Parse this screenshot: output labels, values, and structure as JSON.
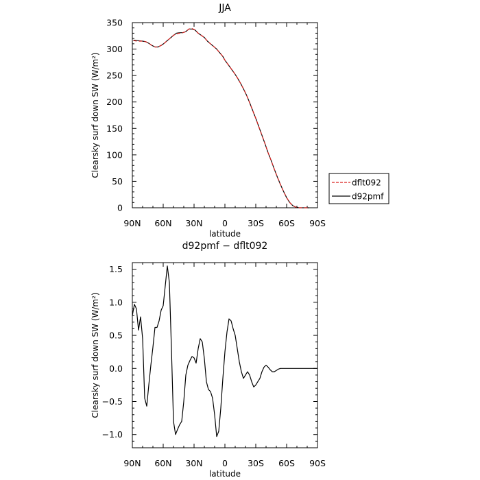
{
  "chart_data": [
    {
      "type": "line",
      "title": "JJA",
      "xlabel": "latitude",
      "ylabel": "Clearsky surf down SW (W/m²)",
      "xlim": [
        90,
        -90
      ],
      "ylim": [
        0,
        350
      ],
      "xticks": [
        90,
        60,
        30,
        0,
        -30,
        -60,
        -90
      ],
      "xtick_labels": [
        "90N",
        "60N",
        "30N",
        "0",
        "30S",
        "60S",
        "90S"
      ],
      "yticks": [
        0,
        50,
        100,
        150,
        200,
        250,
        300,
        350
      ],
      "ytick_labels": [
        "0",
        "50",
        "100",
        "150",
        "200",
        "250",
        "300",
        "350"
      ],
      "legend_placement": "right",
      "series": [
        {
          "name": "dflt092",
          "color": "#d9221f",
          "dash": "dashed",
          "x": [
            89,
            85,
            80,
            77,
            74,
            71,
            68,
            65,
            62,
            59,
            56,
            53,
            50,
            47,
            44,
            41,
            38,
            35,
            32,
            29,
            26,
            23,
            20,
            17,
            14,
            11,
            8,
            5,
            2,
            0,
            -3,
            -6,
            -9,
            -12,
            -15,
            -18,
            -21,
            -24,
            -27,
            -30,
            -33,
            -36,
            -39,
            -42,
            -45,
            -48,
            -51,
            -54,
            -57,
            -60,
            -63,
            -66,
            -69,
            -72,
            -75,
            -78,
            -80,
            -82
          ],
          "y": [
            316,
            315,
            315,
            314,
            311,
            307,
            304,
            304,
            307,
            311,
            316,
            321,
            326,
            329,
            330,
            331,
            333,
            338,
            339,
            336,
            330,
            326,
            322,
            315,
            310,
            305,
            300,
            293,
            286,
            279,
            271,
            263,
            255,
            246,
            236,
            225,
            213,
            199,
            184,
            169,
            153,
            137,
            121,
            104,
            89,
            73,
            58,
            44,
            31,
            19,
            10,
            4,
            1,
            0,
            0,
            0,
            0,
            0
          ]
        },
        {
          "name": "d92pmf",
          "color": "#000000",
          "dash": "solid",
          "x": [
            89,
            85,
            80,
            77,
            74,
            71,
            68,
            65,
            62,
            59,
            56,
            53,
            50,
            47,
            44,
            41,
            38,
            35,
            32,
            29,
            26,
            23,
            20,
            17,
            14,
            11,
            8,
            5,
            2,
            0,
            -3,
            -6,
            -9,
            -12,
            -15,
            -18,
            -21,
            -24,
            -27,
            -30,
            -33,
            -36,
            -39,
            -42,
            -45,
            -48,
            -51,
            -54,
            -57,
            -60,
            -63,
            -66,
            -69,
            -72,
            -75,
            -78,
            -80,
            -82
          ],
          "y": [
            317,
            316,
            315,
            314,
            311,
            307,
            304,
            304,
            307,
            311,
            316,
            321,
            326,
            330,
            331,
            331,
            333,
            338,
            338,
            336,
            330,
            326,
            322,
            315,
            310,
            305,
            300,
            293,
            286,
            279,
            271,
            263,
            255,
            246,
            236,
            225,
            213,
            199,
            184,
            169,
            153,
            137,
            121,
            104,
            89,
            73,
            58,
            44,
            31,
            19,
            10,
            4,
            1,
            0,
            0,
            0,
            0,
            0
          ]
        }
      ]
    },
    {
      "type": "line",
      "title": "d92pmf − dflt092",
      "xlabel": "latitude",
      "ylabel": "Clearsky surf down SW (W/m²)",
      "xlim": [
        90,
        -90
      ],
      "ylim": [
        -1.2,
        1.6
      ],
      "xticks": [
        90,
        60,
        30,
        0,
        -30,
        -60,
        -90
      ],
      "xtick_labels": [
        "90N",
        "60N",
        "30N",
        "0",
        "30S",
        "60S",
        "90S"
      ],
      "yticks": [
        -1.0,
        -0.5,
        0.0,
        0.5,
        1.0,
        1.5
      ],
      "ytick_labels": [
        "−1.0",
        "−0.5",
        "0.0",
        "0.5",
        "1.0",
        "1.5"
      ],
      "series": [
        {
          "color": "#000000",
          "dash": "solid",
          "x": [
            90,
            88,
            86,
            84,
            82,
            80,
            78,
            76,
            74,
            72,
            70,
            68,
            66,
            64,
            62,
            60,
            58,
            56,
            54,
            52,
            50,
            48,
            46,
            44,
            42,
            40,
            38,
            36,
            34,
            32,
            30,
            28,
            26,
            24,
            22,
            20,
            18,
            16,
            14,
            12,
            10,
            8,
            6,
            4,
            2,
            0,
            -2,
            -4,
            -6,
            -8,
            -10,
            -12,
            -14,
            -16,
            -18,
            -20,
            -22,
            -24,
            -26,
            -28,
            -30,
            -32,
            -34,
            -36,
            -38,
            -40,
            -42,
            -44,
            -46,
            -48,
            -50,
            -52,
            -54,
            -56,
            -58,
            -60,
            -62,
            -64,
            -66,
            -68,
            -70,
            -72,
            -74,
            -76,
            -78,
            -80,
            -82,
            -84,
            -86,
            -88,
            -90
          ],
          "y": [
            0.8,
            0.97,
            0.9,
            0.58,
            0.78,
            0.45,
            -0.45,
            -0.57,
            -0.25,
            0.05,
            0.32,
            0.62,
            0.62,
            0.72,
            0.88,
            0.95,
            1.25,
            1.55,
            1.3,
            0.3,
            -0.8,
            -1.0,
            -0.92,
            -0.85,
            -0.8,
            -0.5,
            -0.1,
            0.05,
            0.12,
            0.18,
            0.16,
            0.08,
            0.3,
            0.45,
            0.4,
            0.15,
            -0.2,
            -0.32,
            -0.35,
            -0.45,
            -0.7,
            -1.03,
            -0.95,
            -0.6,
            -0.15,
            0.25,
            0.55,
            0.75,
            0.72,
            0.6,
            0.5,
            0.3,
            0.1,
            -0.05,
            -0.15,
            -0.1,
            -0.05,
            -0.1,
            -0.2,
            -0.28,
            -0.25,
            -0.2,
            -0.15,
            -0.05,
            0.02,
            0.05,
            0.02,
            -0.02,
            -0.05,
            -0.05,
            -0.03,
            -0.01,
            0.0,
            0.0,
            0.0,
            0.0,
            0.0,
            0.0,
            0.0,
            0.0,
            0.0,
            0.0,
            0.0,
            0.0,
            0.0,
            0.0,
            0.0,
            0.0,
            0.0,
            0.0,
            0.0
          ]
        }
      ]
    }
  ]
}
